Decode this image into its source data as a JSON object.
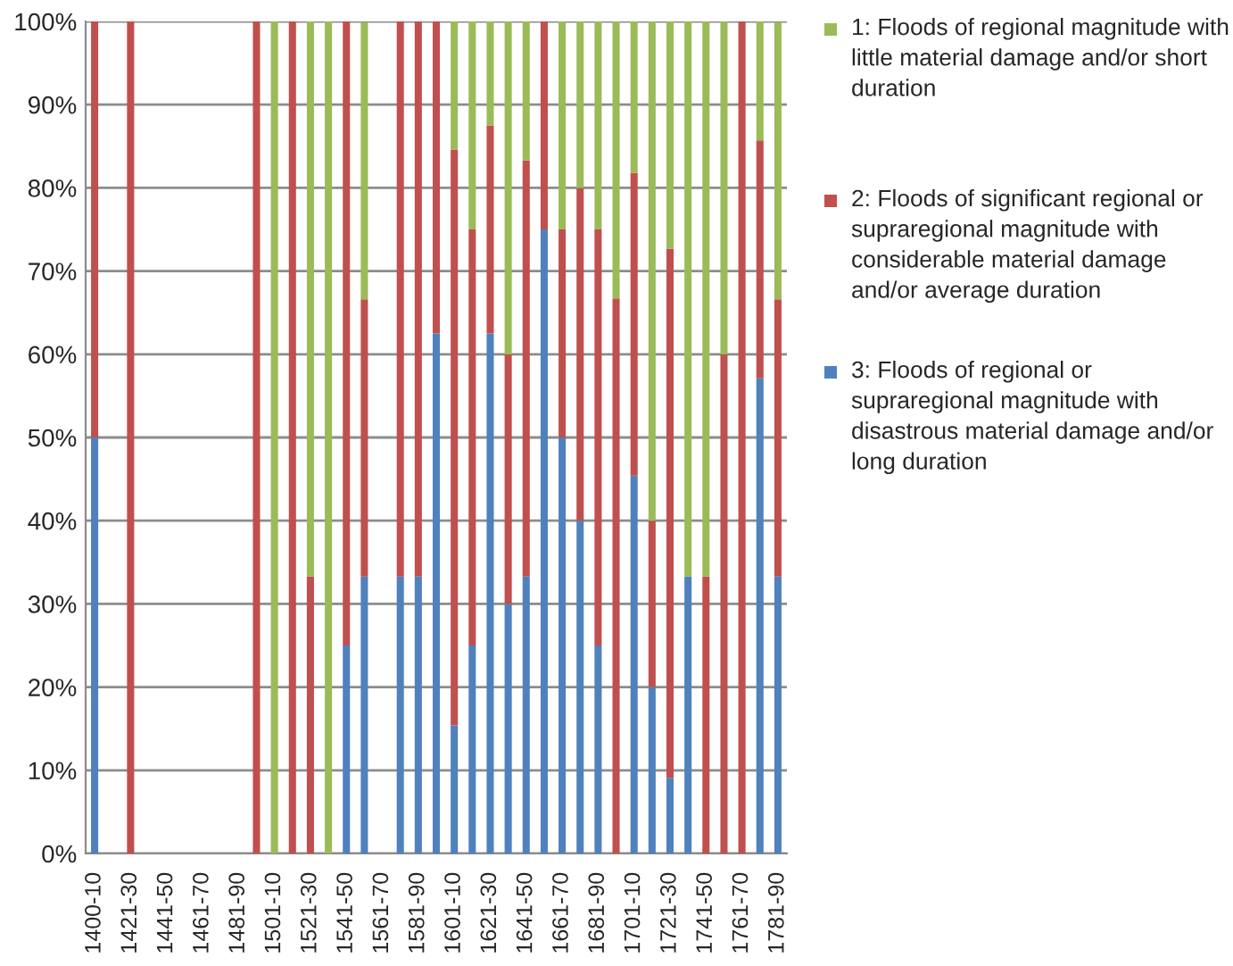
{
  "chart_data": {
    "type": "bar",
    "stacked": true,
    "categories": [
      "1400-10",
      null,
      "1421-30",
      null,
      "1441-50",
      null,
      "1461-70",
      null,
      "1481-90",
      null,
      "1501-10",
      null,
      "1521-30",
      null,
      "1541-50",
      null,
      "1561-70",
      null,
      "1581-90",
      null,
      "1601-10",
      null,
      "1621-30",
      null,
      "1641-50",
      null,
      "1661-70",
      null,
      "1681-90",
      null,
      "1701-10",
      null,
      "1721-30",
      null,
      "1741-50",
      null,
      "1761-70",
      null,
      "1781-90"
    ],
    "series": [
      {
        "name": "3: Floods of regional or supraregional magnitude with disastrous material damage and/or long duration",
        "color": "#4f81bd",
        "values": [
          50,
          null,
          0,
          null,
          null,
          null,
          null,
          null,
          null,
          0,
          0,
          0,
          0,
          0,
          25,
          33.3,
          null,
          33.3,
          33.3,
          62.5,
          15.4,
          25,
          62.5,
          30,
          33.3,
          75,
          50,
          40,
          25,
          0,
          45.4,
          20,
          9.1,
          33.3,
          0,
          0,
          0,
          57.1,
          33.3
        ]
      },
      {
        "name": "2: Floods of significant regional or supraregional magnitude with considerable material damage and/or average duration",
        "color": "#c0504d",
        "values": [
          50,
          null,
          100,
          null,
          null,
          null,
          null,
          null,
          null,
          100,
          0,
          100,
          33.3,
          0,
          75,
          33.3,
          null,
          66.7,
          66.7,
          37.5,
          69.2,
          50,
          25,
          30,
          50,
          25,
          25,
          40,
          50,
          66.7,
          36.4,
          20,
          63.6,
          0,
          33.3,
          60,
          100,
          28.6,
          33.3
        ]
      },
      {
        "name": "1: Floods of regional magnitude with little material damage and/or short duration",
        "color": "#9bbb59",
        "values": [
          0,
          null,
          0,
          null,
          null,
          null,
          null,
          null,
          null,
          0,
          100,
          0,
          66.7,
          100,
          0,
          33.3,
          null,
          0,
          0,
          0,
          15.4,
          25,
          12.5,
          40,
          16.7,
          0,
          25,
          20,
          25,
          33.3,
          18.2,
          60,
          27.3,
          66.7,
          66.7,
          40,
          0,
          14.3,
          33.3
        ]
      }
    ],
    "ylim": [
      0,
      100
    ],
    "yticks": [
      {
        "value": 0,
        "label": "0%"
      },
      {
        "value": 10,
        "label": "10%"
      },
      {
        "value": 20,
        "label": "20%"
      },
      {
        "value": 30,
        "label": "30%"
      },
      {
        "value": 40,
        "label": "40%"
      },
      {
        "value": 50,
        "label": "50%"
      },
      {
        "value": 60,
        "label": "60%"
      },
      {
        "value": 70,
        "label": "70%"
      },
      {
        "value": 80,
        "label": "80%"
      },
      {
        "value": 90,
        "label": "90%"
      },
      {
        "value": 100,
        "label": "100%"
      }
    ],
    "grid": "y",
    "legend": "right"
  }
}
